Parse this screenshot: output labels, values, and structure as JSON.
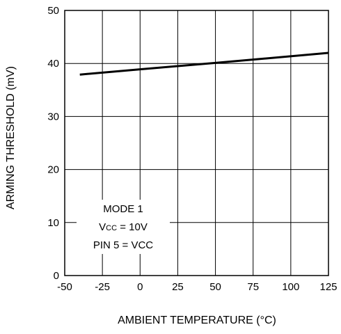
{
  "chart_data": {
    "type": "line",
    "xlabel": "AMBIENT TEMPERATURE (°C)",
    "ylabel": "ARMING THRESHOLD (mV)",
    "xlim": [
      -50,
      125
    ],
    "ylim": [
      0,
      50
    ],
    "x_ticks": [
      "-50",
      "-25",
      "0",
      "25",
      "50",
      "75",
      "100",
      "125"
    ],
    "y_ticks": [
      "0",
      "10",
      "20",
      "30",
      "40",
      "50"
    ],
    "grid": true,
    "series": [
      {
        "x": [
          -40,
          0,
          50,
          125
        ],
        "y": [
          37.9,
          38.9,
          40.1,
          42.0
        ]
      }
    ],
    "annotation": {
      "line1": "MODE 1",
      "line2_main": "V",
      "line2_sub": "CC",
      "line2_rest": " = 10V",
      "line3": "PIN 5 = VCC"
    }
  }
}
